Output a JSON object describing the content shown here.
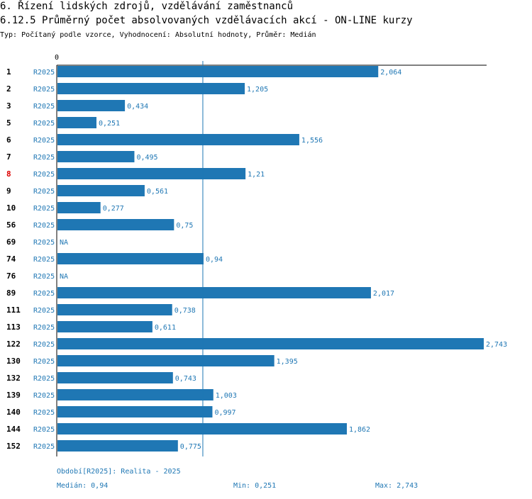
{
  "header": {
    "title": "6. Řízení lidských zdrojů, vzdělávání zaměstnanců",
    "subtitle": "6.12.5 Průměrný počet absolvovaných vzdělávacích akcí - ON-LINE kurzy",
    "type_line": "Typ: Počítaný podle vzorce, Vyhodnocení: Absolutní hodnoty, Průměr: Medián"
  },
  "chart_data": {
    "type": "bar",
    "orientation": "horizontal",
    "axis_zero_label": "0",
    "xlim": [
      0,
      2.743
    ],
    "series_label": "R2025",
    "categories": [
      "1",
      "2",
      "3",
      "5",
      "6",
      "7",
      "8",
      "9",
      "10",
      "56",
      "69",
      "74",
      "76",
      "89",
      "111",
      "113",
      "122",
      "130",
      "132",
      "139",
      "140",
      "144",
      "152"
    ],
    "values": [
      2.064,
      1.205,
      0.434,
      0.251,
      1.556,
      0.495,
      1.21,
      0.561,
      0.277,
      0.75,
      null,
      0.94,
      null,
      2.017,
      0.738,
      0.611,
      2.743,
      1.395,
      0.743,
      1.003,
      0.997,
      1.862,
      0.775
    ],
    "value_labels": [
      "2,064",
      "1,205",
      "0,434",
      "0,251",
      "1,556",
      "0,495",
      "1,21",
      "0,561",
      "0,277",
      "0,75",
      "NA",
      "0,94",
      "NA",
      "2,017",
      "0,738",
      "0,611",
      "2,743",
      "1,395",
      "0,743",
      "1,003",
      "0,997",
      "1,862",
      "0,775"
    ],
    "highlighted_category": "8",
    "median": 0.94
  },
  "colors": {
    "bar": "#1f77b4",
    "label": "#1f77b4",
    "category": "#000000",
    "highlight": "#dd0000",
    "axis": "#000000"
  },
  "footer": {
    "period": "Období[R2025]: Realita - 2025",
    "median": "Medián: 0,94",
    "min": "Min: 0,251",
    "max": "Max: 2,743"
  }
}
